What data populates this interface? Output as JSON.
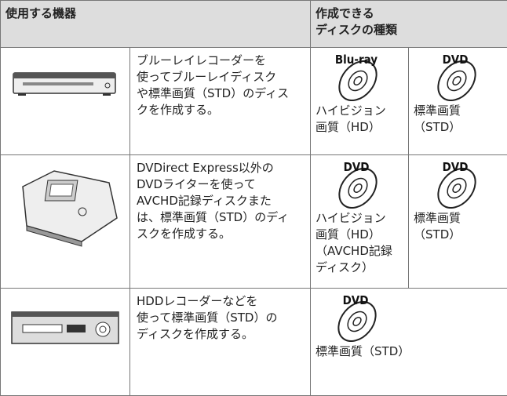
{
  "header": {
    "device": "使用する機器",
    "disc_types": [
      "作成できる",
      "ディスクの種類"
    ]
  },
  "rows": [
    {
      "description": [
        "ブルーレイレコーダーを",
        "使ってブルーレイディスク",
        "や標準画質（STD）のディス",
        "クを作成する。"
      ],
      "discs": [
        {
          "logo": "Blu-ray",
          "caption": [
            "ハイビジョン",
            "画質（HD）"
          ]
        },
        {
          "logo": "DVD",
          "caption": [
            "標準画質",
            "（STD）"
          ]
        }
      ]
    },
    {
      "description": [
        "DVDirect Express以外の",
        "DVDライターを使って",
        "AVCHD記録ディスクまた",
        "は、標準画質（STD）のディ",
        "スクを作成する。"
      ],
      "discs": [
        {
          "logo": "DVD",
          "caption": [
            "ハイビジョン",
            "画質（HD）",
            "（AVCHD記録",
            "ディスク）"
          ]
        },
        {
          "logo": "DVD",
          "caption": [
            "標準画質",
            "（STD）"
          ]
        }
      ]
    },
    {
      "description": [
        "HDDレコーダーなどを",
        "使って標準画質（STD）の",
        "ディスクを作成する。"
      ],
      "discs": [
        {
          "logo": "DVD",
          "caption": [
            "標準画質（STD）"
          ]
        }
      ]
    }
  ]
}
